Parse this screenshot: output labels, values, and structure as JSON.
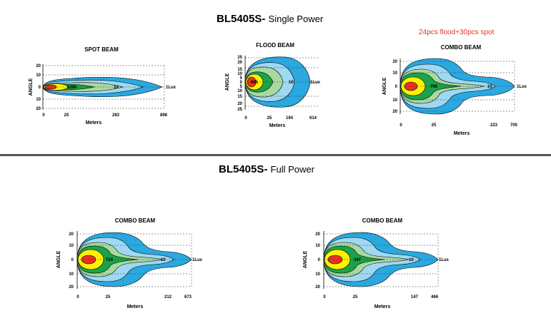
{
  "sections": {
    "single": {
      "model": "BL5405S-",
      "mode": "Single Power",
      "note": "24pcs flood+30pcs spot"
    },
    "full": {
      "model": "BL5405S-",
      "mode": "Full Power"
    }
  },
  "colors": {
    "red": "#e8321e",
    "yellow": "#fff200",
    "green": "#1aa34a",
    "lightgreen": "#a9d9a0",
    "lightblue": "#9fd8f2",
    "blue": "#2aa8e0",
    "divider": "#555555"
  },
  "chart_data": [
    {
      "type": "beam-diagram",
      "title": "SPOT BEAM",
      "xlabel": "Meters",
      "ylabel": "ANGLE",
      "angle_ticks": [
        "20",
        "10",
        "0",
        "10",
        "20"
      ],
      "distance_ticks": [
        "0",
        "25",
        "283",
        "898"
      ],
      "isolux_labels": [
        "1290",
        "10",
        "1Lux"
      ]
    },
    {
      "type": "beam-diagram",
      "title": "FLOOD BEAM",
      "xlabel": "Meters",
      "ylabel": "ANGLE",
      "angle_ticks": [
        "25",
        "20",
        "15",
        "10",
        "5",
        "0",
        "5",
        "10",
        "15",
        "20",
        "25"
      ],
      "distance_ticks": [
        "0",
        "25",
        "194",
        "614"
      ],
      "isolux_labels": [
        "605",
        "10",
        "1Lux"
      ]
    },
    {
      "type": "beam-diagram",
      "title": "COMBO BEAM",
      "xlabel": "Meters",
      "ylabel": "ANGLE",
      "angle_ticks": [
        "20",
        "10",
        "0",
        "10",
        "20"
      ],
      "distance_ticks": [
        "0",
        "25",
        "223",
        "705"
      ],
      "isolux_labels": [
        "795",
        "10",
        "1Lux"
      ]
    },
    {
      "type": "beam-diagram",
      "title": "COMBO BEAM",
      "xlabel": "Meters",
      "ylabel": "ANGLE",
      "angle_ticks": [
        "20",
        "10",
        "0",
        "10",
        "20"
      ],
      "distance_ticks": [
        "0",
        "25",
        "212",
        "673"
      ],
      "isolux_labels": [
        "724",
        "10",
        "1Lux"
      ]
    },
    {
      "type": "beam-diagram",
      "title": "COMBO BEAM",
      "xlabel": "Meters",
      "ylabel": "ANGLE",
      "angle_ticks": [
        "20",
        "10",
        "0",
        "10",
        "20"
      ],
      "distance_ticks": [
        "0",
        "25",
        "147",
        "466"
      ],
      "isolux_labels": [
        "347",
        "10",
        "1Lux"
      ]
    }
  ]
}
